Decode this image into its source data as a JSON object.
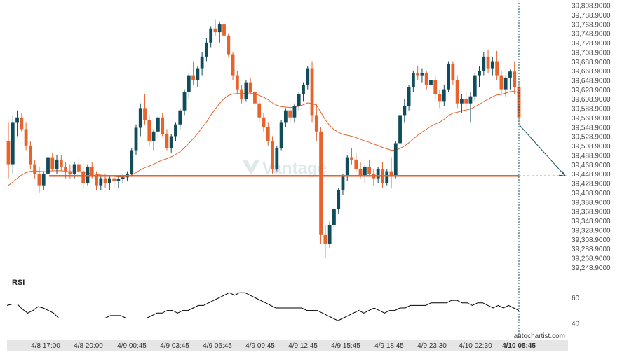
{
  "colors": {
    "up": "#0f4c5c",
    "down": "#e8622c",
    "ma": "#e8622c",
    "level": "#e8622c",
    "forecast": "#0f4c5c",
    "rsi": "#000000",
    "axis_text": "#444444",
    "bottom_bar": "#e6e6e6"
  },
  "chart": {
    "watermark": "Vantage",
    "credit": "autochartist.com"
  },
  "chart_data": [
    {
      "type": "candlestick",
      "title": "",
      "ylim": [
        39230,
        39812
      ],
      "y_ticks": [
        "39,808.9000",
        "39,788.9000",
        "39,768.9000",
        "39,748.9000",
        "39,728.9000",
        "39,708.9000",
        "39,688.9000",
        "39,668.9000",
        "39,648.9000",
        "39,628.9000",
        "39,608.9000",
        "39,588.9000",
        "39,568.9000",
        "39,548.9000",
        "39,528.9000",
        "39,508.9000",
        "39,488.9000",
        "39,468.9000",
        "39,448.9000",
        "39,428.9000",
        "39,408.9000",
        "39,388.9000",
        "39,368.9000",
        "39,348.9000",
        "39,328.9000",
        "39,308.9000",
        "39,288.9000",
        "39,268.9000",
        "39,248.9000"
      ],
      "x_ticks": [
        "4/8 17:00",
        "4/8 20:00",
        "4/9 00:45",
        "4/9 03:45",
        "4/9 06:45",
        "4/9 09:45",
        "4/9 12:45",
        "4/9 15:45",
        "4/9 18:45",
        "4/9 23:30",
        "4/10 02:30",
        "4/10 05:45"
      ],
      "x_ticks_bold": [
        false,
        false,
        false,
        false,
        false,
        false,
        false,
        false,
        false,
        false,
        false,
        true
      ],
      "support_level": 39445,
      "forecast": {
        "from": 39555,
        "to": 39445
      },
      "candles": [
        [
          39520,
          39560,
          39440,
          39470
        ],
        [
          39470,
          39575,
          39450,
          39560
        ],
        [
          39560,
          39585,
          39530,
          39570
        ],
        [
          39570,
          39580,
          39540,
          39545
        ],
        [
          39545,
          39560,
          39500,
          39510
        ],
        [
          39510,
          39520,
          39460,
          39470
        ],
        [
          39470,
          39480,
          39440,
          39450
        ],
        [
          39450,
          39465,
          39410,
          39425
        ],
        [
          39425,
          39455,
          39415,
          39450
        ],
        [
          39450,
          39490,
          39440,
          39485
        ],
        [
          39485,
          39495,
          39455,
          39460
        ],
        [
          39460,
          39490,
          39450,
          39480
        ],
        [
          39480,
          39490,
          39455,
          39465
        ],
        [
          39465,
          39475,
          39440,
          39455
        ],
        [
          39455,
          39470,
          39440,
          39450
        ],
        [
          39450,
          39475,
          39440,
          39470
        ],
        [
          39470,
          39485,
          39450,
          39455
        ],
        [
          39455,
          39465,
          39420,
          39430
        ],
        [
          39430,
          39470,
          39425,
          39465
        ],
        [
          39465,
          39475,
          39440,
          39445
        ],
        [
          39445,
          39455,
          39415,
          39425
        ],
        [
          39425,
          39445,
          39415,
          39440
        ],
        [
          39440,
          39450,
          39420,
          39430
        ],
        [
          39430,
          39445,
          39415,
          39440
        ],
        [
          39440,
          39450,
          39420,
          39435
        ],
        [
          39435,
          39445,
          39420,
          39438
        ],
        [
          39438,
          39448,
          39430,
          39442
        ],
        [
          39442,
          39455,
          39435,
          39450
        ],
        [
          39450,
          39505,
          39445,
          39500
        ],
        [
          39500,
          39555,
          39490,
          39548
        ],
        [
          39548,
          39600,
          39530,
          39590
        ],
        [
          39590,
          39620,
          39555,
          39565
        ],
        [
          39565,
          39575,
          39510,
          39520
        ],
        [
          39520,
          39545,
          39500,
          39540
        ],
        [
          39540,
          39575,
          39525,
          39570
        ],
        [
          39570,
          39580,
          39530,
          39535
        ],
        [
          39535,
          39545,
          39500,
          39505
        ],
        [
          39505,
          39535,
          39495,
          39530
        ],
        [
          39530,
          39560,
          39520,
          39555
        ],
        [
          39555,
          39590,
          39545,
          39585
        ],
        [
          39585,
          39630,
          39575,
          39625
        ],
        [
          39625,
          39665,
          39610,
          39660
        ],
        [
          39660,
          39690,
          39640,
          39650
        ],
        [
          39650,
          39680,
          39635,
          39675
        ],
        [
          39675,
          39710,
          39660,
          39700
        ],
        [
          39700,
          39740,
          39690,
          39730
        ],
        [
          39730,
          39765,
          39720,
          39760
        ],
        [
          39760,
          39780,
          39745,
          39752
        ],
        [
          39752,
          39775,
          39730,
          39770
        ],
        [
          39770,
          39775,
          39740,
          39745
        ],
        [
          39745,
          39750,
          39700,
          39705
        ],
        [
          39705,
          39710,
          39650,
          39660
        ],
        [
          39660,
          39670,
          39620,
          39630
        ],
        [
          39630,
          39640,
          39600,
          39610
        ],
        [
          39610,
          39650,
          39605,
          39645
        ],
        [
          39645,
          39655,
          39620,
          39625
        ],
        [
          39625,
          39635,
          39590,
          39600
        ],
        [
          39600,
          39610,
          39560,
          39570
        ],
        [
          39570,
          39580,
          39540,
          39550
        ],
        [
          39550,
          39560,
          39510,
          39520
        ],
        [
          39520,
          39530,
          39450,
          39460
        ],
        [
          39460,
          39510,
          39455,
          39505
        ],
        [
          39505,
          39565,
          39500,
          39560
        ],
        [
          39560,
          39590,
          39550,
          39585
        ],
        [
          39585,
          39600,
          39560,
          39570
        ],
        [
          39570,
          39600,
          39560,
          39595
        ],
        [
          39595,
          39625,
          39585,
          39620
        ],
        [
          39620,
          39645,
          39605,
          39640
        ],
        [
          39640,
          39680,
          39630,
          39675
        ],
        [
          39675,
          39690,
          39560,
          39575
        ],
        [
          39575,
          39600,
          39520,
          39540
        ],
        [
          39540,
          39550,
          39300,
          39320
        ],
        [
          39320,
          39340,
          39270,
          39300
        ],
        [
          39300,
          39350,
          39290,
          39340
        ],
        [
          39340,
          39380,
          39330,
          39375
        ],
        [
          39375,
          39420,
          39365,
          39415
        ],
        [
          39415,
          39450,
          39405,
          39445
        ],
        [
          39445,
          39490,
          39435,
          39485
        ],
        [
          39485,
          39505,
          39470,
          39480
        ],
        [
          39480,
          39495,
          39455,
          39460
        ],
        [
          39460,
          39475,
          39440,
          39445
        ],
        [
          39445,
          39470,
          39430,
          39465
        ],
        [
          39465,
          39480,
          39445,
          39450
        ],
        [
          39450,
          39460,
          39425,
          39440
        ],
        [
          39440,
          39465,
          39430,
          39460
        ],
        [
          39460,
          39475,
          39420,
          39430
        ],
        [
          39430,
          39460,
          39425,
          39455
        ],
        [
          39455,
          39485,
          39420,
          39445
        ],
        [
          39445,
          39520,
          39440,
          39515
        ],
        [
          39515,
          39580,
          39505,
          39575
        ],
        [
          39575,
          39610,
          39560,
          39595
        ],
        [
          39595,
          39640,
          39585,
          39635
        ],
        [
          39635,
          39670,
          39625,
          39665
        ],
        [
          39665,
          39680,
          39650,
          39660
        ],
        [
          39660,
          39675,
          39645,
          39665
        ],
        [
          39665,
          39670,
          39630,
          39640
        ],
        [
          39640,
          39665,
          39625,
          39650
        ],
        [
          39650,
          39660,
          39610,
          39620
        ],
        [
          39620,
          39630,
          39590,
          39605
        ],
        [
          39605,
          39640,
          39595,
          39630
        ],
        [
          39630,
          39690,
          39625,
          39685
        ],
        [
          39685,
          39690,
          39640,
          39650
        ],
        [
          39650,
          39660,
          39590,
          39600
        ],
        [
          39600,
          39620,
          39580,
          39610
        ],
        [
          39610,
          39625,
          39590,
          39600
        ],
        [
          39600,
          39625,
          39560,
          39615
        ],
        [
          39615,
          39665,
          39605,
          39660
        ],
        [
          39660,
          39680,
          39635,
          39670
        ],
        [
          39670,
          39710,
          39660,
          39700
        ],
        [
          39700,
          39715,
          39665,
          39675
        ],
        [
          39675,
          39700,
          39660,
          39690
        ],
        [
          39690,
          39712,
          39650,
          39660
        ],
        [
          39660,
          39670,
          39620,
          39630
        ],
        [
          39630,
          39660,
          39615,
          39655
        ],
        [
          39655,
          39672,
          39630,
          39668
        ],
        [
          39668,
          39690,
          39620,
          39635
        ],
        [
          39635,
          39645,
          39560,
          39570
        ]
      ],
      "moving_average": [
        39425,
        39432,
        39440,
        39447,
        39452,
        39455,
        39456,
        39455,
        39454,
        39455,
        39456,
        39456,
        39456,
        39455,
        39454,
        39454,
        39454,
        39452,
        39451,
        39450,
        39448,
        39447,
        39446,
        39445,
        39444,
        39443,
        39443,
        39444,
        39447,
        39452,
        39458,
        39463,
        39466,
        39470,
        39475,
        39479,
        39482,
        39486,
        39491,
        39497,
        39505,
        39515,
        39525,
        39536,
        39548,
        39560,
        39575,
        39588,
        39600,
        39610,
        39617,
        39620,
        39621,
        39621,
        39622,
        39622,
        39620,
        39617,
        39613,
        39608,
        39601,
        39596,
        39593,
        39592,
        39591,
        39592,
        39594,
        39597,
        39601,
        39600,
        39596,
        39581,
        39565,
        39553,
        39544,
        39538,
        39534,
        39532,
        39530,
        39527,
        39523,
        39520,
        39517,
        39513,
        39510,
        39506,
        39503,
        39500,
        39500,
        39504,
        39509,
        39516,
        39524,
        39532,
        39539,
        39545,
        39551,
        39556,
        39560,
        39566,
        39574,
        39579,
        39581,
        39584,
        39586,
        39588,
        39593,
        39598,
        39604,
        39609,
        39614,
        39618,
        39619,
        39622,
        39625,
        39626,
        39622
      ],
      "rsi": {
        "label": "RSI",
        "y_ticks": [
          60,
          40
        ],
        "ylim": [
          30,
          74
        ],
        "values": [
          54,
          55,
          55,
          51,
          48,
          50,
          53,
          52,
          50,
          48,
          44,
          44,
          44,
          44,
          44,
          44,
          44,
          44,
          44,
          44,
          46,
          46,
          46,
          44,
          44,
          44,
          44,
          44,
          46,
          48,
          48,
          50,
          50,
          48,
          50,
          50,
          52,
          54,
          54,
          56,
          58,
          60,
          62,
          64,
          62,
          64,
          64,
          62,
          60,
          58,
          56,
          54,
          52,
          52,
          52,
          52,
          52,
          52,
          50,
          50,
          50,
          48,
          46,
          44,
          42,
          44,
          46,
          48,
          50,
          48,
          50,
          52,
          50,
          48,
          50,
          50,
          52,
          52,
          54,
          54,
          54,
          54,
          56,
          56,
          56,
          56,
          58,
          58,
          56,
          56,
          54,
          56,
          56,
          54,
          52,
          54,
          52,
          54,
          52,
          50
        ]
      }
    }
  ]
}
